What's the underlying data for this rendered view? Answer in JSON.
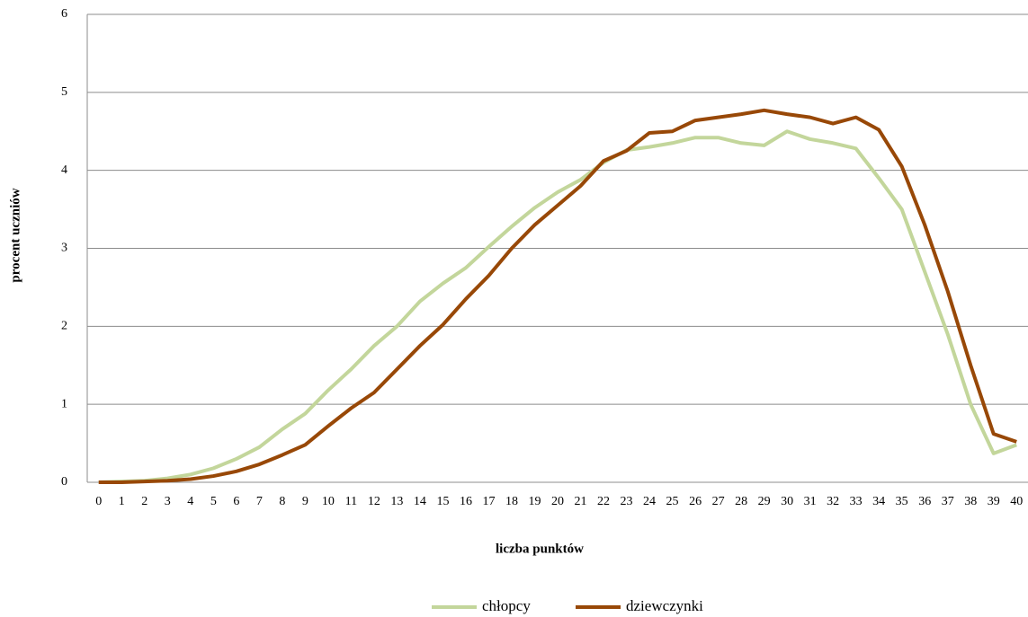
{
  "chart_data": {
    "type": "line",
    "x_label": "liczba punktów",
    "y_label": "procent uczniów",
    "x": [
      0,
      1,
      2,
      3,
      4,
      5,
      6,
      7,
      8,
      9,
      10,
      11,
      12,
      13,
      14,
      15,
      16,
      17,
      18,
      19,
      20,
      21,
      22,
      23,
      24,
      25,
      26,
      27,
      28,
      29,
      30,
      31,
      32,
      33,
      34,
      35,
      36,
      37,
      38,
      39,
      40
    ],
    "series": [
      {
        "name": "chłopcy",
        "color": "#c3d69b",
        "values": [
          0,
          0.01,
          0.02,
          0.05,
          0.1,
          0.18,
          0.3,
          0.45,
          0.68,
          0.88,
          1.18,
          1.45,
          1.75,
          2.0,
          2.32,
          2.55,
          2.75,
          3.02,
          3.28,
          3.52,
          3.72,
          3.88,
          4.1,
          4.26,
          4.3,
          4.35,
          4.42,
          4.42,
          4.35,
          4.32,
          4.5,
          4.4,
          4.35,
          4.28,
          3.9,
          3.5,
          2.7,
          1.9,
          1.0,
          0.37,
          0.48
        ]
      },
      {
        "name": "dziewczynki",
        "color": "#984807",
        "values": [
          0,
          0,
          0.01,
          0.02,
          0.04,
          0.08,
          0.14,
          0.23,
          0.35,
          0.48,
          0.72,
          0.95,
          1.15,
          1.45,
          1.75,
          2.02,
          2.35,
          2.65,
          3.0,
          3.3,
          3.55,
          3.8,
          4.12,
          4.25,
          4.48,
          4.5,
          4.64,
          4.68,
          4.72,
          4.77,
          4.72,
          4.68,
          4.6,
          4.68,
          4.52,
          4.05,
          3.3,
          2.45,
          1.5,
          0.62,
          0.52
        ]
      }
    ],
    "xlim": [
      -0.5,
      40.5
    ],
    "xticks": [
      0,
      1,
      2,
      3,
      4,
      5,
      6,
      7,
      8,
      9,
      10,
      11,
      12,
      13,
      14,
      15,
      16,
      17,
      18,
      19,
      20,
      21,
      22,
      23,
      24,
      25,
      26,
      27,
      28,
      29,
      30,
      31,
      32,
      33,
      34,
      35,
      36,
      37,
      38,
      39,
      40
    ],
    "ylim": [
      0,
      6
    ],
    "yticks": [
      0,
      1,
      2,
      3,
      4,
      5,
      6
    ],
    "grid": true,
    "legend": "bottom"
  }
}
